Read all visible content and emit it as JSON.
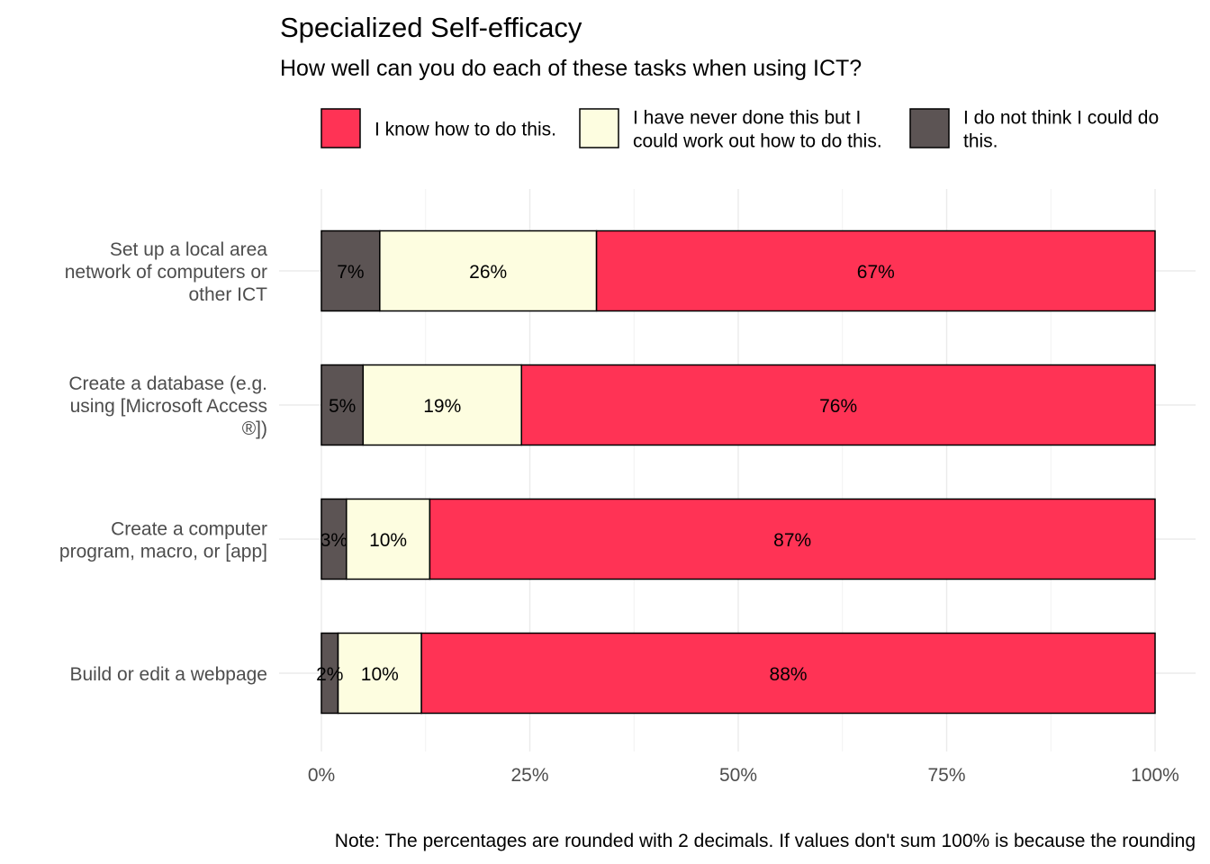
{
  "chart_data": {
    "type": "bar",
    "orientation": "horizontal",
    "stacked": true,
    "title": "Specialized Self-efficacy",
    "subtitle": "How well can you do each of these tasks when using ICT?",
    "note": "Note: The percentages are rounded with 2 decimals. If values don't sum 100% is because the rounding",
    "categories": [
      [
        "Set up a local area",
        "network of computers or",
        "other ICT"
      ],
      [
        "Create a database (e.g.",
        "using [Microsoft Access",
        "®])"
      ],
      [
        "Create a computer",
        "program, macro, or [app]"
      ],
      [
        "Build or edit a webpage"
      ]
    ],
    "series": [
      {
        "name": [
          "I do not think I could do",
          "this."
        ],
        "color": "#5c5454",
        "values": [
          7,
          5,
          3,
          2
        ],
        "labels": [
          "7%",
          "5%",
          "3%",
          "2%"
        ]
      },
      {
        "name": [
          "I have never done this but I",
          "could work out how to do this."
        ],
        "color": "#fdfde0",
        "values": [
          26,
          19,
          10,
          10
        ],
        "labels": [
          "26%",
          "19%",
          "10%",
          "10%"
        ]
      },
      {
        "name": [
          "I know how to do this."
        ],
        "color": "#ff3355",
        "values": [
          67,
          76,
          87,
          88
        ],
        "labels": [
          "67%",
          "76%",
          "87%",
          "88%"
        ]
      }
    ],
    "legend_order": [
      2,
      1,
      0
    ],
    "legend_position": "top",
    "xlim": [
      0,
      100
    ],
    "xticks": [
      0,
      25,
      50,
      75,
      100
    ],
    "xtick_labels": [
      "0%",
      "25%",
      "50%",
      "75%",
      "100%"
    ],
    "grid": true
  }
}
